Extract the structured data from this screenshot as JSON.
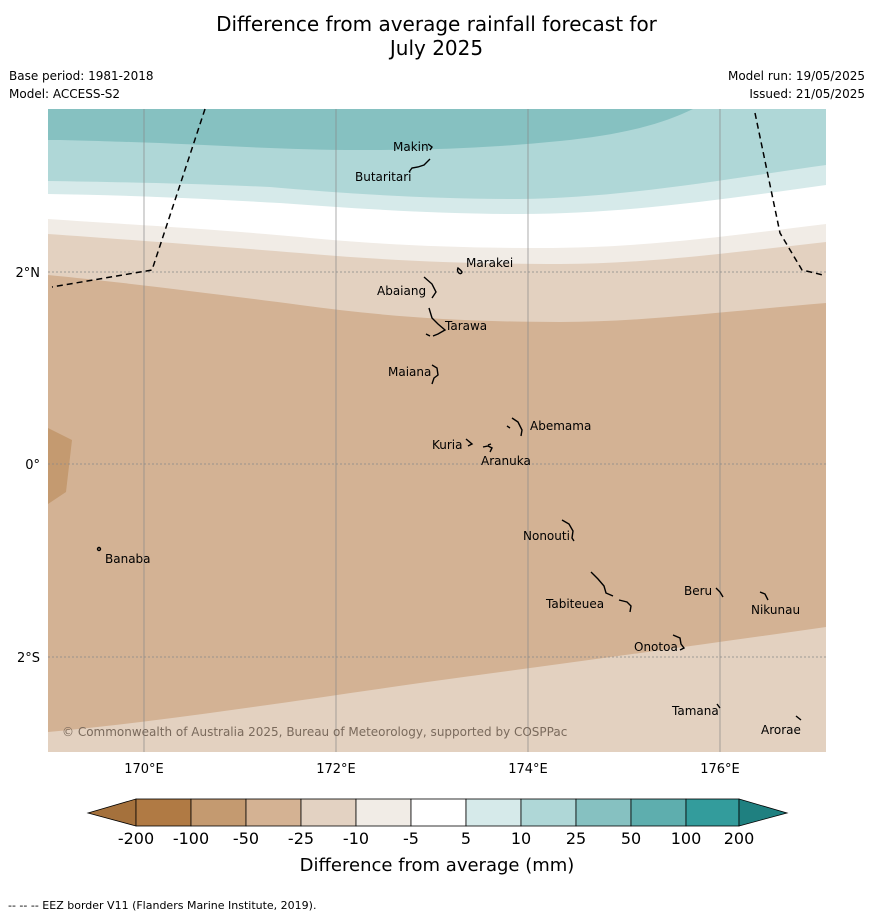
{
  "title_line1": "Difference from average rainfall forecast for",
  "title_line2": "July 2025",
  "meta_left": {
    "base_period": "Base period: 1981-2018",
    "model": "Model: ACCESS-S2"
  },
  "meta_right": {
    "model_run": "Model run: 19/05/2025",
    "issued": "Issued: 21/05/2025"
  },
  "axes": {
    "lat_labels": [
      {
        "text": "2°N"
      },
      {
        "text": "0°"
      },
      {
        "text": "2°S"
      }
    ],
    "lon_labels": [
      {
        "text": "170°E"
      },
      {
        "text": "172°E"
      },
      {
        "text": "174°E"
      },
      {
        "text": "176°E"
      }
    ]
  },
  "islands": [
    {
      "name": "Makin"
    },
    {
      "name": "Butaritari"
    },
    {
      "name": "Marakei"
    },
    {
      "name": "Abaiang"
    },
    {
      "name": "Tarawa"
    },
    {
      "name": "Maiana"
    },
    {
      "name": "Abemama"
    },
    {
      "name": "Kuria"
    },
    {
      "name": "Aranuka"
    },
    {
      "name": "Banaba"
    },
    {
      "name": "Nonouti"
    },
    {
      "name": "Beru"
    },
    {
      "name": "Tabiteuea"
    },
    {
      "name": "Nikunau"
    },
    {
      "name": "Onotoa"
    },
    {
      "name": "Tamana"
    },
    {
      "name": "Arorae"
    }
  ],
  "copyright": "© Commonwealth of Australia 2025, Bureau of Meteorology, supported by COSPPac",
  "colorbar": {
    "title": "Difference from average (mm)",
    "ticks": [
      "-200",
      "-100",
      "-50",
      "-25",
      "-10",
      "-5",
      "5",
      "10",
      "25",
      "50",
      "100",
      "200"
    ],
    "colors": [
      "#a5713c",
      "#b07a44",
      "#c49a70",
      "#d4b293",
      "#e3d2c2",
      "#f1ece6",
      "#ffffff",
      "#d6eaea",
      "#afd7d7",
      "#86c1c1",
      "#5eaeae",
      "#339c9c",
      "#1f8080"
    ]
  },
  "footer_note": "-- -- -- EEZ border V11 (Flanders Marine Institute, 2019)."
}
